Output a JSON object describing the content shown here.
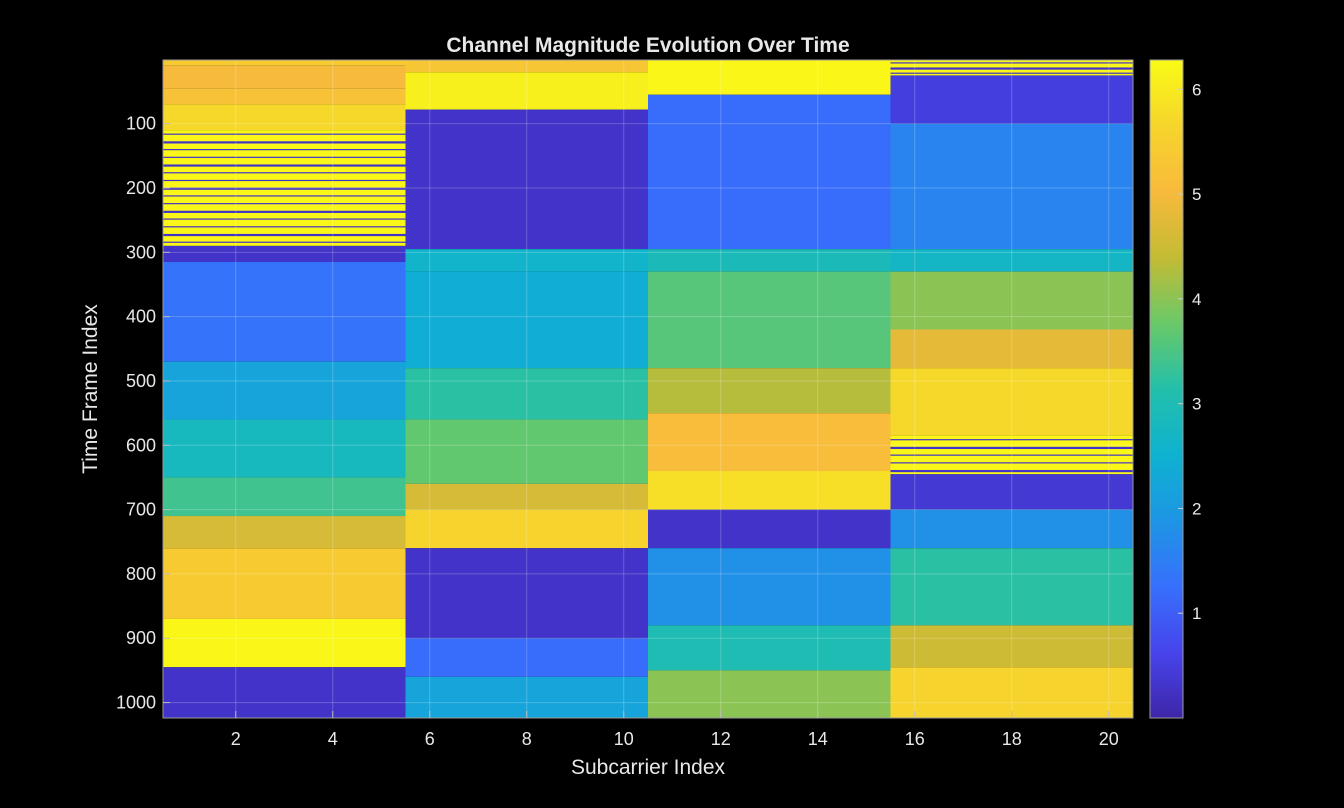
{
  "chart_data": {
    "type": "heatmap",
    "title": "Channel Magnitude Evolution Over Time",
    "xlabel": "Subcarrier Index",
    "ylabel": "Time Frame Index",
    "x_ticks": [
      "2",
      "4",
      "6",
      "8",
      "10",
      "12",
      "14",
      "16",
      "18",
      "20"
    ],
    "y_ticks": [
      "100",
      "200",
      "300",
      "400",
      "500",
      "600",
      "700",
      "800",
      "900",
      "1000"
    ],
    "xlim": [
      0.5,
      20.5
    ],
    "ylim": [
      1,
      1024
    ],
    "y_direction": "reversed",
    "colorbar": {
      "colormap": "parula",
      "range": [
        0,
        6.28
      ],
      "ticks": [
        "1",
        "2",
        "3",
        "4",
        "5",
        "6"
      ]
    },
    "grid": true,
    "subcarrier_groups": [
      {
        "subcarriers": [
          1,
          5
        ],
        "segments": [
          {
            "frames": [
              1,
              10
            ],
            "value": 5.4
          },
          {
            "frames": [
              10,
              45
            ],
            "value": 5.0
          },
          {
            "frames": [
              45,
              70
            ],
            "value": 5.2
          },
          {
            "frames": [
              70,
              110
            ],
            "value": 5.7
          },
          {
            "frames": [
              110,
              290
            ],
            "value": 6.2,
            "striped_with": 0.3,
            "note": "alternating stripes"
          },
          {
            "frames": [
              290,
              315
            ],
            "value": 0.3
          },
          {
            "frames": [
              315,
              470
            ],
            "value": 1.3
          },
          {
            "frames": [
              470,
              560
            ],
            "value": 2.2
          },
          {
            "frames": [
              560,
              650
            ],
            "value": 2.8
          },
          {
            "frames": [
              650,
              710
            ],
            "value": 3.4
          },
          {
            "frames": [
              710,
              760
            ],
            "value": 4.6
          },
          {
            "frames": [
              760,
              870
            ],
            "value": 5.4
          },
          {
            "frames": [
              870,
              945
            ],
            "value": 6.2
          },
          {
            "frames": [
              945,
              1024
            ],
            "value": 0.3
          }
        ]
      },
      {
        "subcarriers": [
          6,
          10
        ],
        "segments": [
          {
            "frames": [
              1,
              20
            ],
            "value": 5.3
          },
          {
            "frames": [
              20,
              78
            ],
            "value": 6.1
          },
          {
            "frames": [
              78,
              295
            ],
            "value": 0.3
          },
          {
            "frames": [
              295,
              330
            ],
            "value": 2.6
          },
          {
            "frames": [
              330,
              480
            ],
            "value": 2.4
          },
          {
            "frames": [
              480,
              560
            ],
            "value": 3.2
          },
          {
            "frames": [
              560,
              660
            ],
            "value": 3.7
          },
          {
            "frames": [
              660,
              700
            ],
            "value": 4.6
          },
          {
            "frames": [
              700,
              760
            ],
            "value": 5.6
          },
          {
            "frames": [
              760,
              900
            ],
            "value": 0.3
          },
          {
            "frames": [
              900,
              960
            ],
            "value": 1.2
          },
          {
            "frames": [
              960,
              1024
            ],
            "value": 2.2
          }
        ]
      },
      {
        "subcarriers": [
          11,
          15
        ],
        "segments": [
          {
            "frames": [
              1,
              55
            ],
            "value": 6.2
          },
          {
            "frames": [
              55,
              295
            ],
            "value": 1.2
          },
          {
            "frames": [
              295,
              330
            ],
            "value": 2.9
          },
          {
            "frames": [
              330,
              480
            ],
            "value": 3.6
          },
          {
            "frames": [
              480,
              550
            ],
            "value": 4.3
          },
          {
            "frames": [
              550,
              640
            ],
            "value": 5.1
          },
          {
            "frames": [
              640,
              700
            ],
            "value": 5.8
          },
          {
            "frames": [
              700,
              760
            ],
            "value": 0.3
          },
          {
            "frames": [
              760,
              880
            ],
            "value": 1.8
          },
          {
            "frames": [
              880,
              950
            ],
            "value": 3.0
          },
          {
            "frames": [
              950,
              1024
            ],
            "value": 4.0
          }
        ]
      },
      {
        "subcarriers": [
          16,
          20
        ],
        "segments": [
          {
            "frames": [
              1,
              25
            ],
            "value": 6.2,
            "striped_with": 0.3,
            "note": "alternating stripes"
          },
          {
            "frames": [
              25,
              100
            ],
            "value": 0.5
          },
          {
            "frames": [
              100,
              295
            ],
            "value": 1.6
          },
          {
            "frames": [
              295,
              330
            ],
            "value": 2.7
          },
          {
            "frames": [
              330,
              420
            ],
            "value": 4.0
          },
          {
            "frames": [
              420,
              480
            ],
            "value": 4.8
          },
          {
            "frames": [
              480,
              585
            ],
            "value": 5.7
          },
          {
            "frames": [
              585,
              645
            ],
            "value": 6.2,
            "striped_with": 0.3,
            "note": "alternating stripes"
          },
          {
            "frames": [
              645,
              700
            ],
            "value": 0.4
          },
          {
            "frames": [
              700,
              760
            ],
            "value": 1.8
          },
          {
            "frames": [
              760,
              880
            ],
            "value": 3.2
          },
          {
            "frames": [
              880,
              945
            ],
            "value": 4.5
          },
          {
            "frames": [
              945,
              1024
            ],
            "value": 5.6
          }
        ]
      }
    ]
  }
}
